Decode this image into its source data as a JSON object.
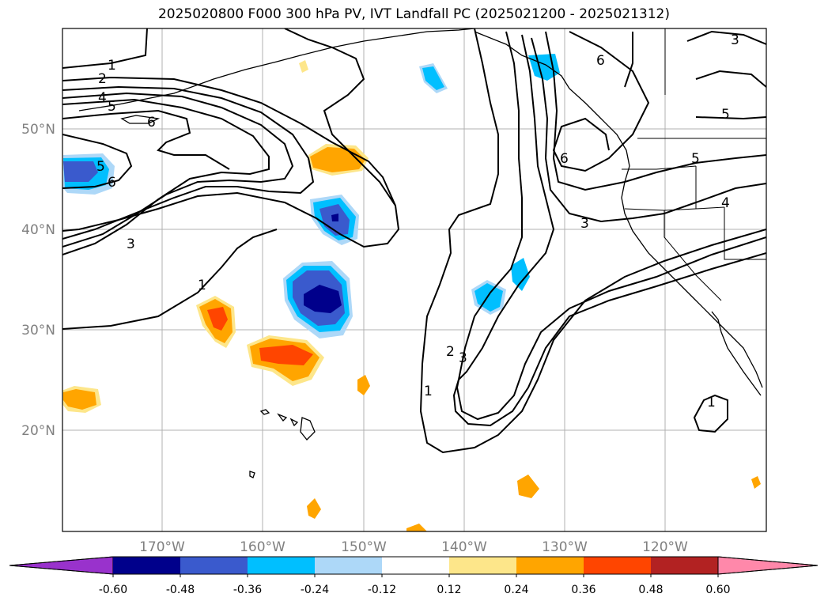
{
  "title": "2025020800 F000 300 hPa PV, IVT Landfall PC (2025021200 - 2025021312)",
  "map": {
    "lat_labels": [
      "50°N",
      "40°N",
      "30°N",
      "20°N"
    ],
    "lon_labels": [
      "170°W",
      "160°W",
      "150°W",
      "140°W",
      "130°W",
      "120°W"
    ],
    "label_color": "#808080",
    "gridline_color": "#b0b0b0"
  },
  "contour_labels": [
    "1",
    "2",
    "4",
    "5",
    "6",
    "5",
    "6",
    "3",
    "1",
    "6",
    "6",
    "5",
    "3",
    "4",
    "3",
    "5",
    "2",
    "3",
    "1",
    "1"
  ],
  "colorbar": {
    "ticks": [
      "-0.60",
      "-0.48",
      "-0.36",
      "-0.24",
      "-0.12",
      "0.12",
      "0.24",
      "0.36",
      "0.48",
      "0.60"
    ],
    "colors": [
      "#9932cc",
      "#00008b",
      "#3a5acd",
      "#00bfff",
      "#add8f8",
      "#ffffff",
      "#fde68a",
      "#ffa500",
      "#ff4500",
      "#b22222",
      "#ff88aa"
    ]
  }
}
